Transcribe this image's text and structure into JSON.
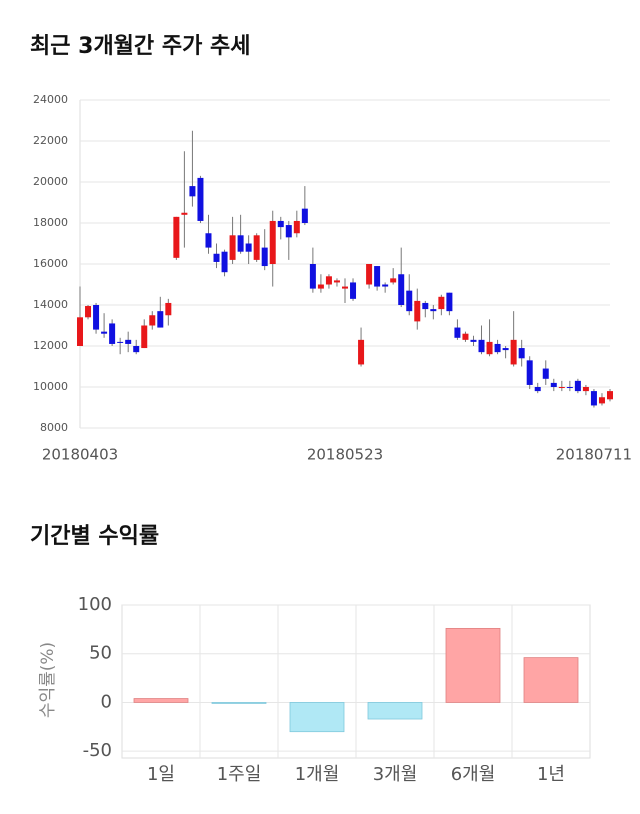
{
  "chart_data": [
    {
      "type": "candlestick",
      "title": "최근 3개월간 주가 추세",
      "categories": [
        "20180403",
        null,
        null,
        null,
        null,
        null,
        null,
        null,
        null,
        null,
        null,
        null,
        null,
        null,
        null,
        null,
        null,
        null,
        null,
        null,
        null,
        null,
        null,
        null,
        null,
        null,
        null,
        null,
        null,
        null,
        null,
        null,
        null,
        "20180523",
        null,
        null,
        null,
        null,
        null,
        null,
        null,
        null,
        null,
        null,
        null,
        null,
        null,
        null,
        null,
        null,
        null,
        null,
        null,
        null,
        null,
        null,
        null,
        null,
        null,
        null,
        null,
        null,
        null,
        null,
        "20180711",
        null,
        null
      ],
      "open": [
        12000,
        13400,
        14000,
        12700,
        13100,
        12200,
        12300,
        12000,
        11900,
        13000,
        13700,
        13500,
        16300,
        18400,
        19800,
        20200,
        17500,
        16500,
        16600,
        16200,
        17400,
        17000,
        16200,
        16800,
        16000,
        18100,
        17900,
        17500,
        18700,
        16000,
        14800,
        15000,
        15100,
        14800,
        15100,
        11100,
        15000,
        15900,
        15000,
        15100,
        15500,
        14700,
        13200,
        14100,
        13800,
        13800,
        14600,
        12900,
        12300,
        12300,
        12300,
        11600,
        12100,
        11900,
        11100,
        11900,
        11300,
        10000,
        10900,
        10200,
        9950,
        10000,
        10300,
        9800,
        9800,
        9200,
        9400
      ],
      "high": [
        14900,
        14000,
        14100,
        13600,
        13300,
        12400,
        12700,
        12300,
        13300,
        13700,
        14400,
        14300,
        18300,
        21500,
        22500,
        20300,
        18400,
        17000,
        16700,
        18300,
        18400,
        17400,
        17500,
        17700,
        18600,
        18300,
        18100,
        18600,
        19800,
        16800,
        15500,
        15500,
        15300,
        15300,
        15300,
        12900,
        16000,
        15900,
        15100,
        15800,
        16800,
        15500,
        14800,
        14200,
        14000,
        14500,
        14600,
        13300,
        12700,
        12500,
        13000,
        13300,
        12300,
        12000,
        13700,
        12300,
        11500,
        10200,
        11300,
        10400,
        10300,
        10300,
        10400,
        10100,
        9900,
        9700,
        9900
      ],
      "low": [
        12000,
        13300,
        12600,
        12400,
        12000,
        11600,
        11700,
        11600,
        11900,
        12800,
        12900,
        13000,
        16200,
        16800,
        18800,
        18000,
        16500,
        15800,
        15400,
        16000,
        16500,
        16000,
        16100,
        15700,
        14900,
        17200,
        16200,
        17300,
        17900,
        14600,
        14600,
        14800,
        14900,
        14100,
        14200,
        11000,
        14800,
        14700,
        14600,
        15000,
        13900,
        13500,
        12800,
        13400,
        13300,
        13500,
        13500,
        12300,
        12200,
        12000,
        11600,
        11500,
        11600,
        11400,
        11000,
        11000,
        9900,
        9700,
        10100,
        9800,
        9800,
        9800,
        9700,
        9600,
        9000,
        9100,
        9300
      ],
      "close": [
        13400,
        13950,
        12800,
        12600,
        12100,
        12150,
        12100,
        11700,
        13000,
        13500,
        12900,
        14100,
        18300,
        18500,
        19300,
        18100,
        16800,
        16100,
        15600,
        17400,
        16600,
        16600,
        17400,
        15900,
        18100,
        17800,
        17300,
        18100,
        18000,
        14800,
        15000,
        15400,
        15200,
        14900,
        14300,
        12300,
        16000,
        14900,
        14900,
        15300,
        14000,
        13700,
        14200,
        13800,
        13700,
        14400,
        13700,
        12400,
        12600,
        12200,
        11700,
        12200,
        11700,
        11800,
        12300,
        11400,
        10100,
        9800,
        10400,
        10000,
        10000,
        9950,
        9800,
        10000,
        9100,
        9500,
        9800
      ],
      "up_color": "#e8171a",
      "down_color": "#1010e0",
      "ylim": [
        8000,
        24000
      ],
      "yticks": [
        8000,
        10000,
        12000,
        14000,
        16000,
        18000,
        20000,
        22000,
        24000
      ],
      "grid": true
    },
    {
      "type": "bar",
      "title": "기간별 수익률",
      "y_label": "수익률(%)",
      "categories": [
        "1일",
        "1주일",
        "1개월",
        "3개월",
        "6개월",
        "1년"
      ],
      "values": [
        4,
        -1,
        -30,
        -17,
        76,
        46
      ],
      "positive_color": "#ffa5a5",
      "negative_color": "#b0e8f5",
      "ylim": [
        -57,
        100
      ],
      "yticks": [
        -50,
        0,
        50,
        100
      ],
      "grid": true
    }
  ]
}
